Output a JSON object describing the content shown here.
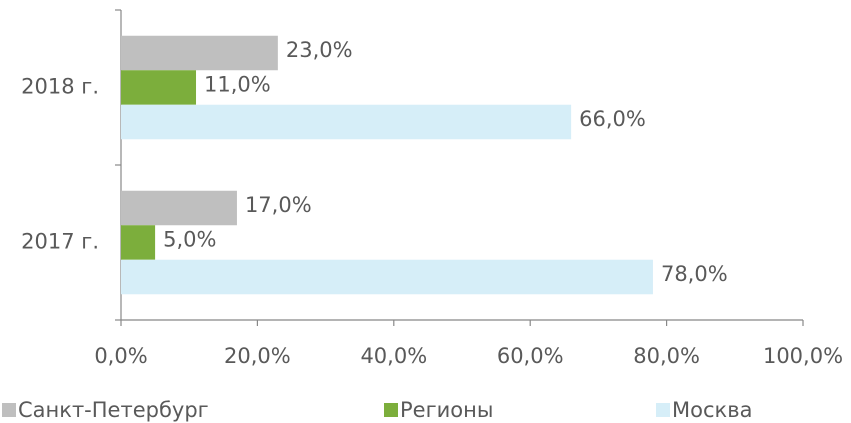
{
  "chart_data": {
    "type": "hbar",
    "categories": [
      "2018 г.",
      "2017 г."
    ],
    "series": [
      {
        "name": "Санкт-Петербург",
        "color": "#bfbfbf",
        "values": [
          23,
          17
        ],
        "value_labels": [
          "23,0%",
          "17,0%"
        ]
      },
      {
        "name": "Регионы",
        "color": "#7cae3c",
        "values": [
          11,
          5
        ],
        "value_labels": [
          "11,0%",
          "5,0%"
        ]
      },
      {
        "name": "Москва",
        "color": "#d6eef8",
        "values": [
          66,
          78
        ],
        "value_labels": [
          "66,0%",
          "78,0%"
        ]
      }
    ],
    "xlim": [
      0,
      100
    ],
    "xticks": [
      {
        "value": 0,
        "label": "0,0%"
      },
      {
        "value": 20,
        "label": "20,0%"
      },
      {
        "value": 40,
        "label": "40,0%"
      },
      {
        "value": 60,
        "label": "60,0%"
      },
      {
        "value": 80,
        "label": "80,0%"
      },
      {
        "value": 100,
        "label": "100,0%"
      }
    ],
    "legend": "bottom"
  }
}
